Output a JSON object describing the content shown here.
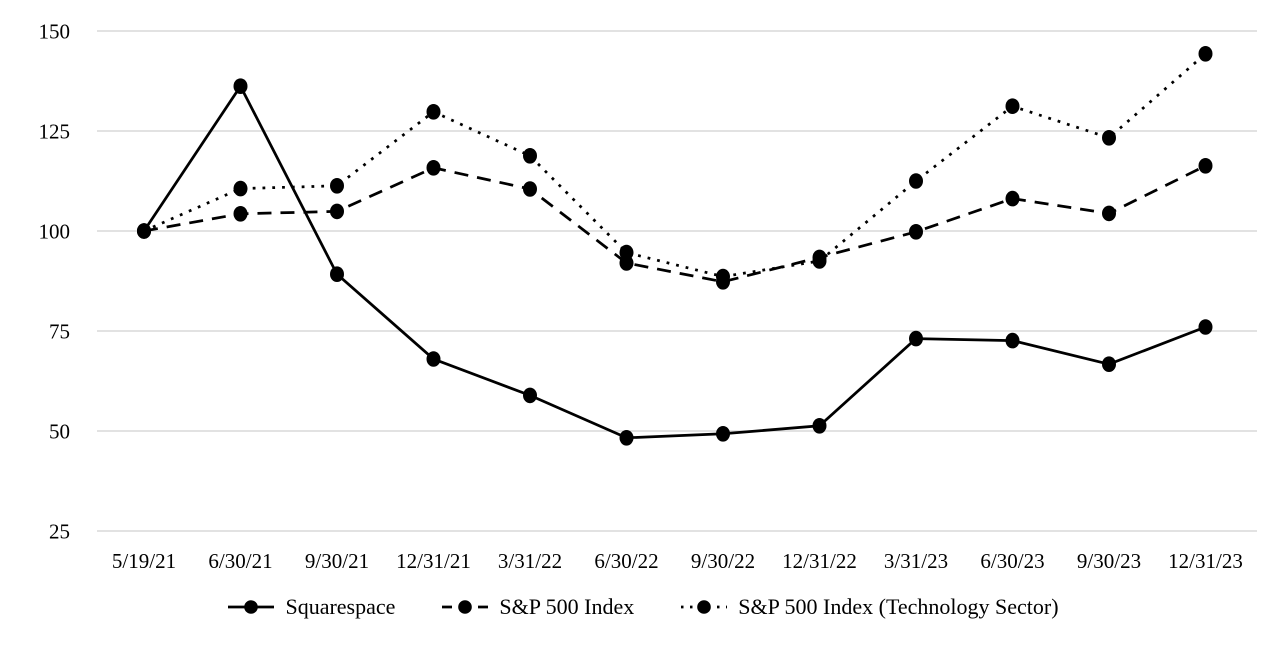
{
  "chart_data": {
    "type": "line",
    "title": "",
    "xlabel": "",
    "ylabel": "",
    "x_categories": [
      "5/19/21",
      "6/30/21",
      "9/30/21",
      "12/31/21",
      "3/31/22",
      "6/30/22",
      "9/30/22",
      "12/31/22",
      "3/31/23",
      "6/30/23",
      "9/30/23",
      "12/31/23"
    ],
    "series": [
      {
        "name": "Squarespace",
        "line_style": "solid",
        "marker": "filled-circle",
        "values": [
          100,
          136.2,
          89.2,
          68.0,
          58.9,
          48.3,
          49.3,
          51.3,
          73.1,
          72.6,
          66.7,
          76.0
        ]
      },
      {
        "name": "S&P 500 Index",
        "line_style": "dashed",
        "marker": "filled-circle",
        "values": [
          100,
          104.3,
          104.9,
          115.8,
          110.5,
          92.0,
          87.3,
          93.4,
          99.8,
          108.1,
          104.4,
          116.3
        ]
      },
      {
        "name": "S&P 500 Index (Technology Sector)",
        "line_style": "dotted",
        "marker": "filled-circle",
        "values": [
          100,
          110.6,
          111.3,
          129.8,
          118.8,
          94.6,
          88.6,
          92.5,
          112.5,
          131.2,
          123.3,
          144.3
        ]
      }
    ],
    "y_ticks": [
      150,
      125,
      100,
      75,
      50,
      25
    ],
    "ylim": [
      25,
      150
    ],
    "grid": "horizontal-only",
    "legend_position": "bottom-center",
    "colors": {
      "series": "#000000",
      "grid": "#d9d9d9",
      "text": "#000000",
      "background": "#ffffff"
    }
  }
}
